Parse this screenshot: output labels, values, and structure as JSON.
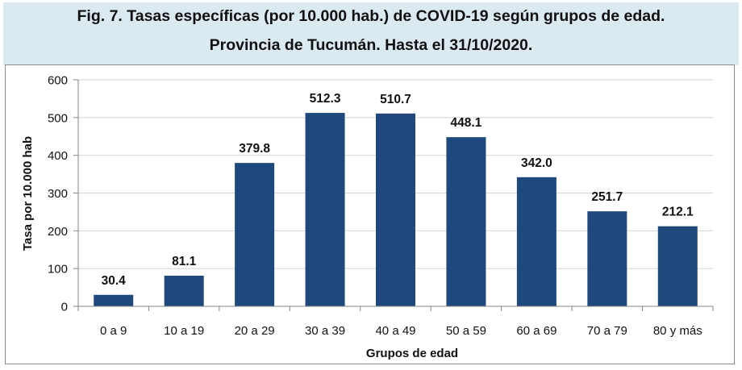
{
  "title": {
    "line1": "Fig. 7. Tasas específicas (por 10.000 hab.) de COVID-19 según grupos de edad.",
    "line2": "Provincia de Tucumán. Hasta el 31/10/2020."
  },
  "colors": {
    "bar": "#1f497d",
    "title_background": "#dbeaf1",
    "gridline": "#d9d9d9",
    "axis": "#868686"
  },
  "chart_data": {
    "type": "bar",
    "title": "Fig. 7. Tasas específicas (por 10.000 hab.) de COVID-19 según grupos de edad. Provincia de Tucumán. Hasta el 31/10/2020.",
    "categories": [
      "0 a 9",
      "10 a 19",
      "20 a 29",
      "30 a 39",
      "40 a 49",
      "50 a 59",
      "60 a 69",
      "70 a 79",
      "80 y más"
    ],
    "values": [
      30.4,
      81.1,
      379.8,
      512.3,
      510.7,
      448.1,
      342.0,
      251.7,
      212.1
    ],
    "value_labels": [
      "30.4",
      "81.1",
      "379.8",
      "512.3",
      "510.7",
      "448.1",
      "342.0",
      "251.7",
      "212.1"
    ],
    "xlabel": "Grupos de edad",
    "ylabel": "Tasa por 10.000 hab",
    "ylim": [
      0,
      600
    ],
    "yticks": [
      0,
      100,
      200,
      300,
      400,
      500,
      600
    ],
    "grid": true,
    "legend": "none"
  }
}
